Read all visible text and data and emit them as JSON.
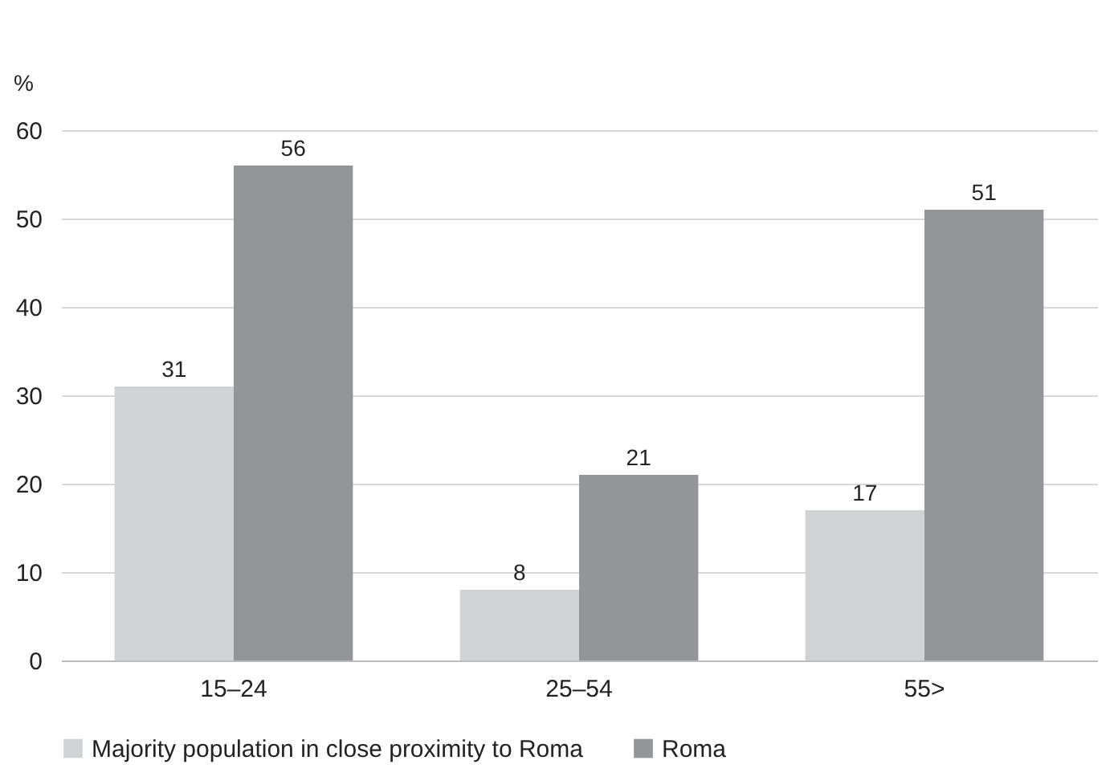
{
  "chart_data": {
    "type": "bar",
    "ylabel": "%",
    "categories": [
      "15–24",
      "25–54",
      "55>"
    ],
    "series": [
      {
        "name": "Majority population in close proximity to Roma",
        "color": "#d1d2d4",
        "values": [
          31,
          8,
          17
        ]
      },
      {
        "name": "Roma",
        "color": "#939598",
        "values": [
          56,
          21,
          51
        ]
      }
    ],
    "ylim": [
      0,
      60
    ],
    "yticks": [
      0,
      10,
      20,
      30,
      40,
      50,
      60
    ],
    "grid": "y",
    "legend": "bottom",
    "data_labels": true
  }
}
